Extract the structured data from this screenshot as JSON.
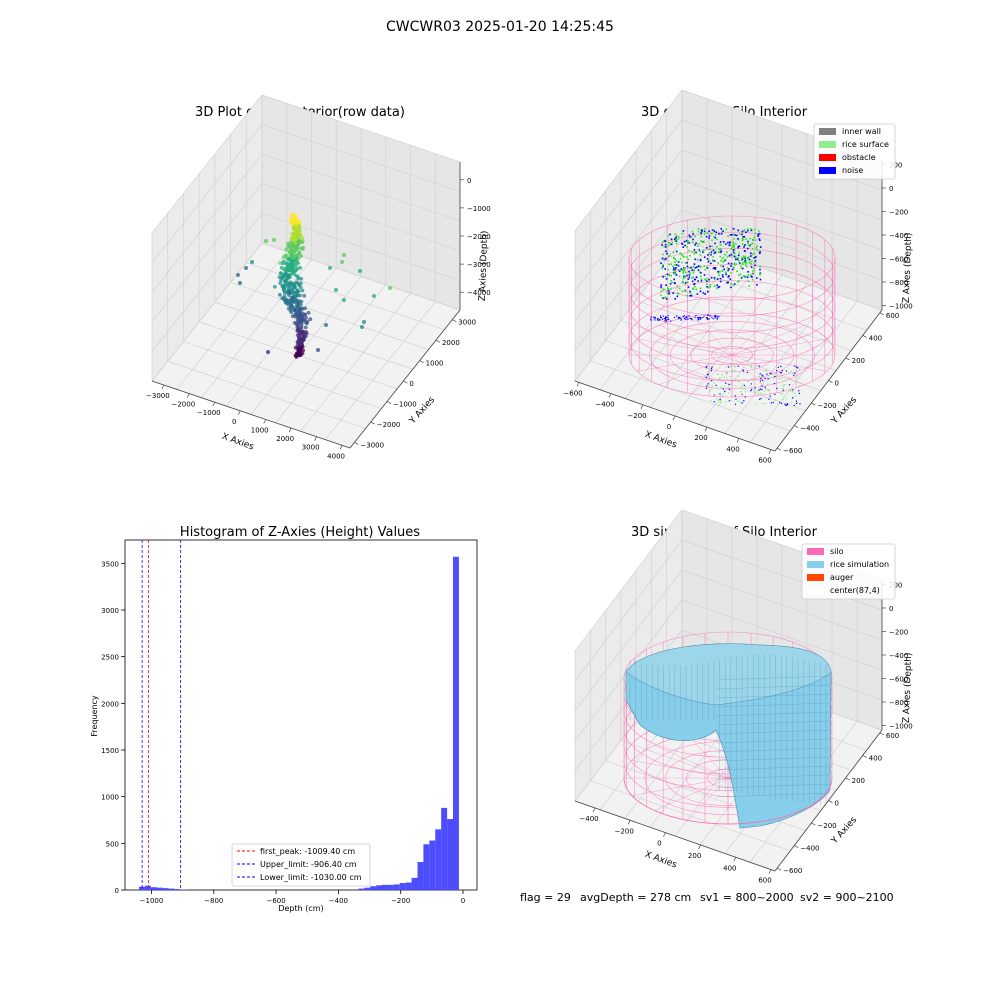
{
  "figure": {
    "suptitle": "CWCWR03 2025-01-20 14:25:45",
    "footer": {
      "flag": "flag = 29",
      "avg_depth": "avgDepth = 278 cm",
      "sv1": "sv1 = 800~2000",
      "sv2": "sv2 = 900~2100"
    }
  },
  "chart_data": [
    {
      "type": "scatter",
      "projection": "3d",
      "title": "3D Plot of Silo Interior(row data)",
      "xlabel": "X Axies",
      "ylabel": "Y Axies",
      "zlabel": "Z Axies (Depth)",
      "x_ticks": [
        "−3000",
        "−2000",
        "−1000",
        "0",
        "1000",
        "2000",
        "3000",
        "4000"
      ],
      "y_ticks": [
        "−3000",
        "−2000",
        "−1000",
        "0",
        "1000",
        "2000",
        "3000"
      ],
      "z_ticks": [
        "−4000",
        "−3000",
        "−2000",
        "−1000",
        "0"
      ],
      "colormap": "viridis",
      "grid": true
    },
    {
      "type": "scatter",
      "projection": "3d",
      "title": "3D classify of Silo Interior",
      "xlabel": "X Axies",
      "ylabel": "Y Axies",
      "zlabel": "Z Axies (Depth)",
      "x_ticks": [
        "−600",
        "−400",
        "−200",
        "0",
        "200",
        "400",
        "600"
      ],
      "y_ticks": [
        "−600",
        "−400",
        "−200",
        "0",
        "200",
        "400",
        "600"
      ],
      "z_ticks": [
        "−1000",
        "−800",
        "−600",
        "−400",
        "−200",
        "0",
        "200"
      ],
      "legend": [
        {
          "label": "inner wall",
          "color": "#808080"
        },
        {
          "label": "rice surface",
          "color": "#90ee90"
        },
        {
          "label": "obstacle",
          "color": "#ff0000"
        },
        {
          "label": "noise",
          "color": "#0000ff"
        }
      ],
      "legend_position": "top-right",
      "wall_color": "#ff69b4",
      "grid": true
    },
    {
      "type": "histogram",
      "title": "Histogram of Z-Axies (Height) Values",
      "xlabel": "Depth (cm)",
      "ylabel": "Frequency",
      "xlim": [
        -1085,
        45
      ],
      "ylim": [
        0,
        3750
      ],
      "x_ticks": [
        -1000,
        -800,
        -600,
        -400,
        -200,
        0
      ],
      "y_ticks": [
        0,
        500,
        1000,
        1500,
        2000,
        2500,
        3000,
        3500
      ],
      "bar_color": "#4d4dff",
      "bins": [
        {
          "x0": -1040,
          "x1": -1021,
          "count": 35
        },
        {
          "x0": -1021,
          "x1": -1002,
          "count": 45
        },
        {
          "x0": -1002,
          "x1": -983,
          "count": 30
        },
        {
          "x0": -983,
          "x1": -964,
          "count": 25
        },
        {
          "x0": -964,
          "x1": -945,
          "count": 20
        },
        {
          "x0": -945,
          "x1": -926,
          "count": 15
        },
        {
          "x0": -926,
          "x1": -907,
          "count": 10
        },
        {
          "x0": -907,
          "x1": -888,
          "count": 5
        },
        {
          "x0": -336,
          "x1": -317,
          "count": 15
        },
        {
          "x0": -317,
          "x1": -298,
          "count": 25
        },
        {
          "x0": -298,
          "x1": -279,
          "count": 40
        },
        {
          "x0": -279,
          "x1": -260,
          "count": 50
        },
        {
          "x0": -260,
          "x1": -241,
          "count": 55
        },
        {
          "x0": -241,
          "x1": -222,
          "count": 55
        },
        {
          "x0": -222,
          "x1": -203,
          "count": 60
        },
        {
          "x0": -203,
          "x1": -184,
          "count": 75
        },
        {
          "x0": -184,
          "x1": -165,
          "count": 80
        },
        {
          "x0": -165,
          "x1": -146,
          "count": 130
        },
        {
          "x0": -146,
          "x1": -127,
          "count": 300
        },
        {
          "x0": -127,
          "x1": -108,
          "count": 490
        },
        {
          "x0": -108,
          "x1": -89,
          "count": 530
        },
        {
          "x0": -89,
          "x1": -70,
          "count": 650
        },
        {
          "x0": -70,
          "x1": -51,
          "count": 880
        },
        {
          "x0": -51,
          "x1": -32,
          "count": 760
        },
        {
          "x0": -32,
          "x1": -13,
          "count": 3570
        }
      ],
      "vlines": [
        {
          "x": -1009.4,
          "label": "first_peak: -1009.40 cm",
          "color": "#ff0000"
        },
        {
          "x": -906.4,
          "label": "Upper_limit: -906.40 cm",
          "color": "#0000ff"
        },
        {
          "x": -1030.0,
          "label": "Lower_limit: -1030.00 cm",
          "color": "#0000ff"
        }
      ],
      "legend_position": "lower-center"
    },
    {
      "type": "surface",
      "projection": "3d",
      "title": "3D simulation of Silo Interior",
      "xlabel": "X Axies",
      "ylabel": "Y Axies",
      "zlabel": "Z Axies (Depth)",
      "x_ticks": [
        "−400",
        "−200",
        "0",
        "200",
        "400",
        "600"
      ],
      "y_ticks": [
        "−600",
        "−400",
        "−200",
        "0",
        "200",
        "400",
        "600"
      ],
      "z_ticks": [
        "−1000",
        "−800",
        "−600",
        "−400",
        "−200",
        "0",
        "200"
      ],
      "legend": [
        {
          "label": "silo",
          "color": "#ff69b4"
        },
        {
          "label": "rice simulation",
          "color": "#87ceeb"
        },
        {
          "label": "auger",
          "color": "#ff4500"
        },
        {
          "label": "center(87,4)",
          "color": "#ffffff"
        }
      ],
      "legend_position": "top-right",
      "grid": true
    }
  ]
}
